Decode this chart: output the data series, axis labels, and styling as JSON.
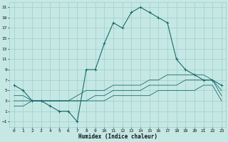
{
  "xlabel": "Humidex (Indice chaleur)",
  "xlim": [
    -0.5,
    23.5
  ],
  "ylim": [
    -2,
    22
  ],
  "yticks": [
    -1,
    1,
    3,
    5,
    7,
    9,
    11,
    13,
    15,
    17,
    19,
    21
  ],
  "xticks": [
    0,
    1,
    2,
    3,
    4,
    5,
    6,
    7,
    8,
    9,
    10,
    11,
    12,
    13,
    14,
    15,
    16,
    17,
    18,
    19,
    20,
    21,
    22,
    23
  ],
  "bg_color": "#c5e8e5",
  "grid_color": "#9ecece",
  "line_color": "#1a6b6b",
  "line1": {
    "x": [
      0,
      1,
      2,
      3,
      4,
      5,
      6,
      7,
      8,
      9,
      10,
      11,
      12,
      13,
      14,
      15,
      16,
      17,
      18,
      19,
      20,
      21,
      22,
      23
    ],
    "y": [
      6,
      5,
      3,
      3,
      2,
      1,
      1,
      -1,
      9,
      9,
      14,
      18,
      17,
      20,
      21,
      20,
      19,
      18,
      11,
      9,
      8,
      7,
      7,
      6
    ]
  },
  "line2": {
    "x": [
      0,
      1,
      2,
      3,
      4,
      5,
      6,
      7,
      8,
      9,
      10,
      11,
      12,
      13,
      14,
      15,
      16,
      17,
      18,
      19,
      20,
      21,
      22,
      23
    ],
    "y": [
      2,
      2,
      3,
      3,
      3,
      3,
      3,
      3,
      3,
      3,
      3,
      4,
      4,
      4,
      4,
      4,
      5,
      5,
      5,
      5,
      5,
      6,
      6,
      3
    ]
  },
  "line3": {
    "x": [
      0,
      1,
      2,
      3,
      4,
      5,
      6,
      7,
      8,
      9,
      10,
      11,
      12,
      13,
      14,
      15,
      16,
      17,
      18,
      19,
      20,
      21,
      22,
      23
    ],
    "y": [
      3,
      3,
      3,
      3,
      3,
      3,
      3,
      3,
      3,
      4,
      4,
      5,
      5,
      5,
      5,
      6,
      6,
      6,
      6,
      7,
      7,
      7,
      7,
      4
    ]
  },
  "line4": {
    "x": [
      0,
      1,
      2,
      3,
      4,
      5,
      6,
      7,
      8,
      9,
      10,
      11,
      12,
      13,
      14,
      15,
      16,
      17,
      18,
      19,
      20,
      21,
      22,
      23
    ],
    "y": [
      4,
      4,
      3,
      3,
      3,
      3,
      3,
      4,
      5,
      5,
      5,
      6,
      6,
      6,
      6,
      7,
      7,
      8,
      8,
      8,
      8,
      8,
      7,
      5
    ]
  }
}
